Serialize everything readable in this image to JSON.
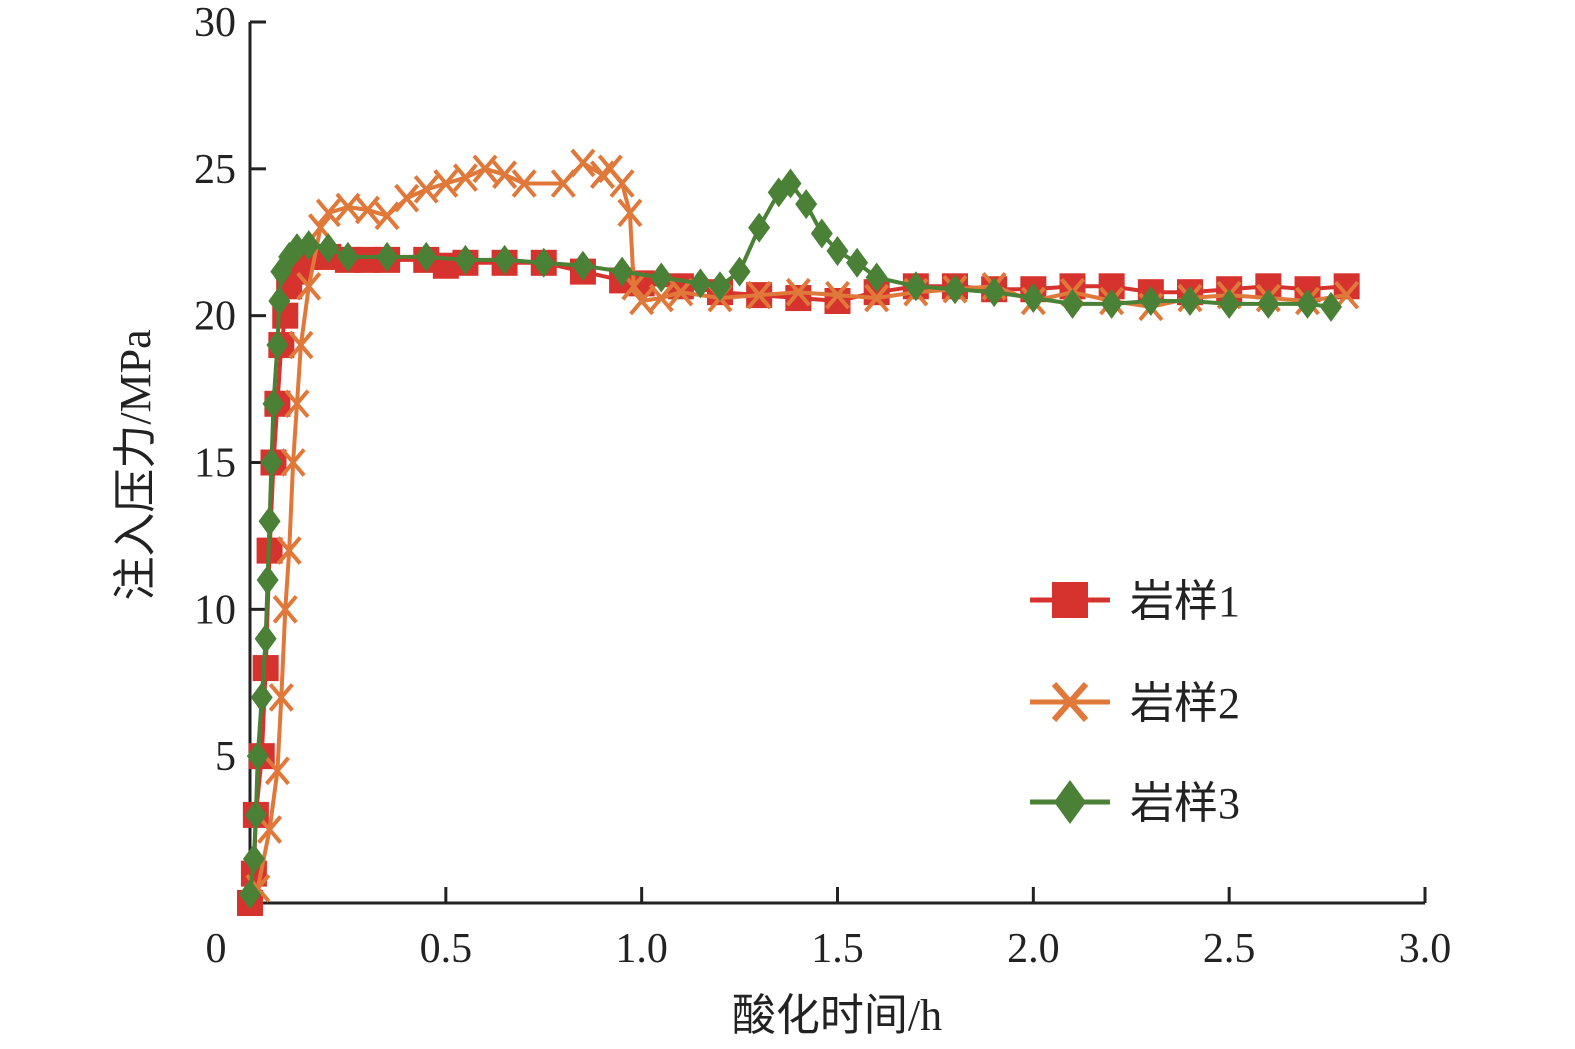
{
  "colors": {
    "series1": "#d6332e",
    "series2": "#e0783a",
    "series3": "#4a8136",
    "axis": "#222222"
  },
  "chart_data": {
    "type": "line",
    "title": "",
    "xlabel": "酸化时间/h",
    "ylabel": "注入压力/MPa",
    "xlim": [
      0,
      3.0
    ],
    "ylim": [
      0,
      30
    ],
    "x_ticks": [
      0,
      0.5,
      1.0,
      1.5,
      2.0,
      2.5,
      3.0
    ],
    "x_tick_labels": [
      "0",
      "0.5",
      "1.0",
      "1.5",
      "2.0",
      "2.5",
      "3.0"
    ],
    "y_ticks": [
      5,
      10,
      15,
      20,
      25,
      30
    ],
    "y_tick_labels": [
      "5",
      "10",
      "15",
      "20",
      "25",
      "30"
    ],
    "grid": false,
    "legend_position": "right-middle",
    "series": [
      {
        "name": "岩样1",
        "marker": "square",
        "points": [
          [
            0,
            0
          ],
          [
            0.01,
            1
          ],
          [
            0.015,
            3
          ],
          [
            0.03,
            5
          ],
          [
            0.04,
            8
          ],
          [
            0.05,
            12
          ],
          [
            0.06,
            15
          ],
          [
            0.07,
            17
          ],
          [
            0.08,
            19
          ],
          [
            0.09,
            20
          ],
          [
            0.1,
            21
          ],
          [
            0.12,
            21.5
          ],
          [
            0.15,
            22
          ],
          [
            0.2,
            22
          ],
          [
            0.25,
            21.9
          ],
          [
            0.3,
            21.9
          ],
          [
            0.35,
            21.9
          ],
          [
            0.45,
            21.9
          ],
          [
            0.5,
            21.7
          ],
          [
            0.55,
            21.8
          ],
          [
            0.65,
            21.8
          ],
          [
            0.75,
            21.8
          ],
          [
            0.85,
            21.5
          ],
          [
            0.95,
            21.2
          ],
          [
            1.0,
            21.1
          ],
          [
            1.1,
            21.0
          ],
          [
            1.2,
            20.8
          ],
          [
            1.3,
            20.7
          ],
          [
            1.4,
            20.6
          ],
          [
            1.5,
            20.5
          ],
          [
            1.6,
            20.8
          ],
          [
            1.7,
            21.0
          ],
          [
            1.8,
            21.0
          ],
          [
            1.9,
            20.9
          ],
          [
            2.0,
            20.9
          ],
          [
            2.1,
            21.0
          ],
          [
            2.2,
            21.0
          ],
          [
            2.3,
            20.8
          ],
          [
            2.4,
            20.8
          ],
          [
            2.5,
            20.9
          ],
          [
            2.6,
            21.0
          ],
          [
            2.7,
            20.9
          ],
          [
            2.8,
            21.0
          ]
        ]
      },
      {
        "name": "岩样2",
        "marker": "x",
        "points": [
          [
            0.02,
            0.5
          ],
          [
            0.05,
            2.5
          ],
          [
            0.07,
            4.5
          ],
          [
            0.08,
            7
          ],
          [
            0.09,
            10
          ],
          [
            0.1,
            12
          ],
          [
            0.11,
            15
          ],
          [
            0.12,
            17
          ],
          [
            0.13,
            19
          ],
          [
            0.15,
            21
          ],
          [
            0.18,
            23
          ],
          [
            0.2,
            23.5
          ],
          [
            0.25,
            23.7
          ],
          [
            0.3,
            23.6
          ],
          [
            0.35,
            23.4
          ],
          [
            0.4,
            24
          ],
          [
            0.45,
            24.3
          ],
          [
            0.5,
            24.5
          ],
          [
            0.55,
            24.7
          ],
          [
            0.6,
            25
          ],
          [
            0.65,
            24.8
          ],
          [
            0.7,
            24.5
          ],
          [
            0.8,
            24.5
          ],
          [
            0.85,
            25.2
          ],
          [
            0.9,
            24.8
          ],
          [
            0.92,
            25
          ],
          [
            0.95,
            24.5
          ],
          [
            0.97,
            23.5
          ],
          [
            0.98,
            21
          ],
          [
            1.0,
            20.5
          ],
          [
            1.05,
            20.6
          ],
          [
            1.1,
            20.8
          ],
          [
            1.2,
            20.6
          ],
          [
            1.3,
            20.7
          ],
          [
            1.4,
            20.8
          ],
          [
            1.5,
            20.7
          ],
          [
            1.6,
            20.6
          ],
          [
            1.7,
            20.8
          ],
          [
            1.8,
            20.9
          ],
          [
            1.9,
            21.0
          ],
          [
            2.0,
            20.5
          ],
          [
            2.1,
            20.8
          ],
          [
            2.2,
            20.5
          ],
          [
            2.3,
            20.3
          ],
          [
            2.4,
            20.6
          ],
          [
            2.5,
            20.7
          ],
          [
            2.6,
            20.6
          ],
          [
            2.7,
            20.5
          ],
          [
            2.8,
            20.7
          ]
        ]
      },
      {
        "name": "岩样3",
        "marker": "diamond",
        "points": [
          [
            0,
            0.3
          ],
          [
            0.01,
            1.5
          ],
          [
            0.015,
            3
          ],
          [
            0.02,
            5
          ],
          [
            0.03,
            7
          ],
          [
            0.04,
            9
          ],
          [
            0.045,
            11
          ],
          [
            0.05,
            13
          ],
          [
            0.055,
            15
          ],
          [
            0.06,
            17
          ],
          [
            0.07,
            19
          ],
          [
            0.075,
            20.5
          ],
          [
            0.08,
            21.5
          ],
          [
            0.1,
            22
          ],
          [
            0.12,
            22.3
          ],
          [
            0.15,
            22.4
          ],
          [
            0.2,
            22.3
          ],
          [
            0.25,
            22
          ],
          [
            0.35,
            22
          ],
          [
            0.45,
            22
          ],
          [
            0.55,
            21.9
          ],
          [
            0.65,
            21.9
          ],
          [
            0.75,
            21.8
          ],
          [
            0.85,
            21.7
          ],
          [
            0.95,
            21.5
          ],
          [
            1.05,
            21.3
          ],
          [
            1.15,
            21.1
          ],
          [
            1.2,
            21.0
          ],
          [
            1.25,
            21.5
          ],
          [
            1.3,
            23
          ],
          [
            1.35,
            24.2
          ],
          [
            1.38,
            24.5
          ],
          [
            1.42,
            23.8
          ],
          [
            1.46,
            22.8
          ],
          [
            1.5,
            22.2
          ],
          [
            1.55,
            21.8
          ],
          [
            1.6,
            21.3
          ],
          [
            1.7,
            21
          ],
          [
            1.8,
            20.9
          ],
          [
            1.9,
            20.8
          ],
          [
            2.0,
            20.6
          ],
          [
            2.1,
            20.4
          ],
          [
            2.2,
            20.4
          ],
          [
            2.3,
            20.5
          ],
          [
            2.4,
            20.5
          ],
          [
            2.5,
            20.4
          ],
          [
            2.6,
            20.4
          ],
          [
            2.7,
            20.4
          ],
          [
            2.76,
            20.3
          ]
        ]
      }
    ]
  }
}
